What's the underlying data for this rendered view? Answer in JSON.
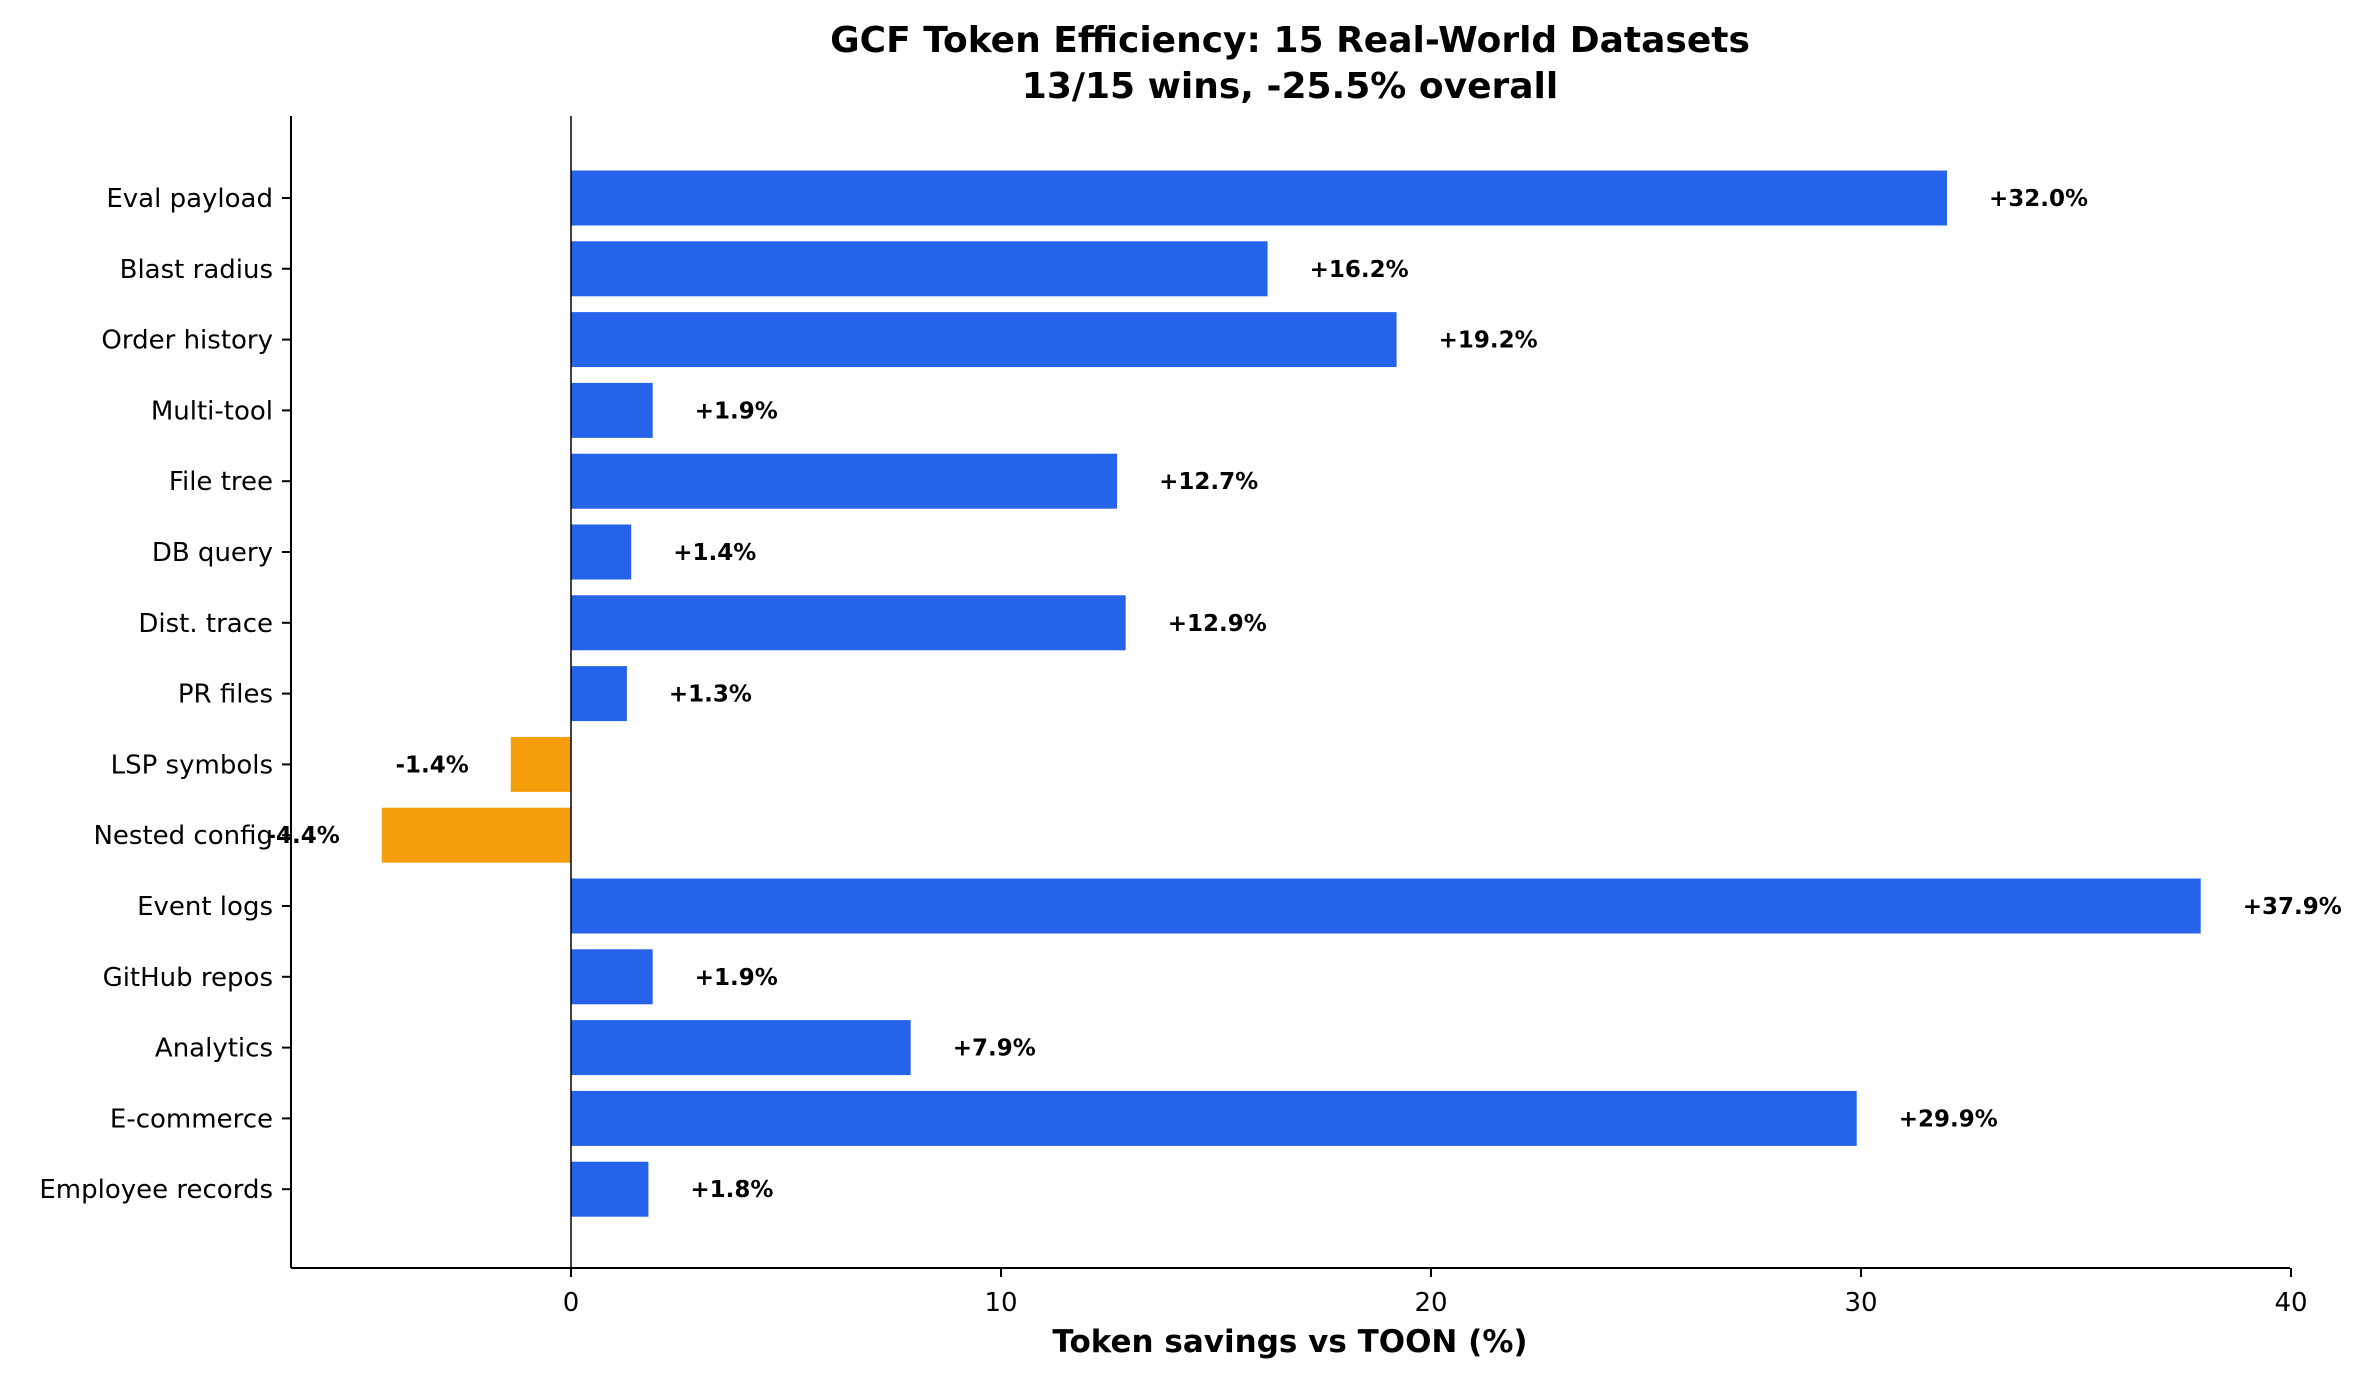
{
  "chart_data": {
    "type": "bar",
    "orientation": "horizontal",
    "title": "GCF Token Efficiency: 15 Real-World Datasets",
    "subtitle": "13/15 wins, -25.5% overall",
    "xlabel": "Token savings vs TOON (%)",
    "ylabel": "",
    "xlim": [
      -6.5,
      40
    ],
    "xticks": [
      0,
      10,
      20,
      30,
      40
    ],
    "xtick_labels": [
      "0",
      "10",
      "20",
      "30",
      "40"
    ],
    "grid": false,
    "legend": "none",
    "colors": {
      "positive": "#2563eb",
      "negative": "#f59e0b"
    },
    "categories": [
      "Eval payload",
      "Blast radius",
      "Order history",
      "Multi-tool",
      "File tree",
      "DB query",
      "Dist. trace",
      "PR files",
      "LSP symbols",
      "Nested config",
      "Event logs",
      "GitHub repos",
      "Analytics",
      "E-commerce",
      "Employee records"
    ],
    "values": [
      32.0,
      16.2,
      19.2,
      1.9,
      12.7,
      1.4,
      12.9,
      1.3,
      -1.4,
      -4.4,
      37.9,
      1.9,
      7.9,
      29.9,
      1.8
    ],
    "data_labels": [
      "+32.0%",
      "+16.2%",
      "+19.2%",
      "+1.9%",
      "+12.7%",
      "+1.4%",
      "+12.9%",
      "+1.3%",
      "-1.4%",
      "-4.4%",
      "+37.9%",
      "+1.9%",
      "+7.9%",
      "+29.9%",
      "+1.8%"
    ]
  }
}
